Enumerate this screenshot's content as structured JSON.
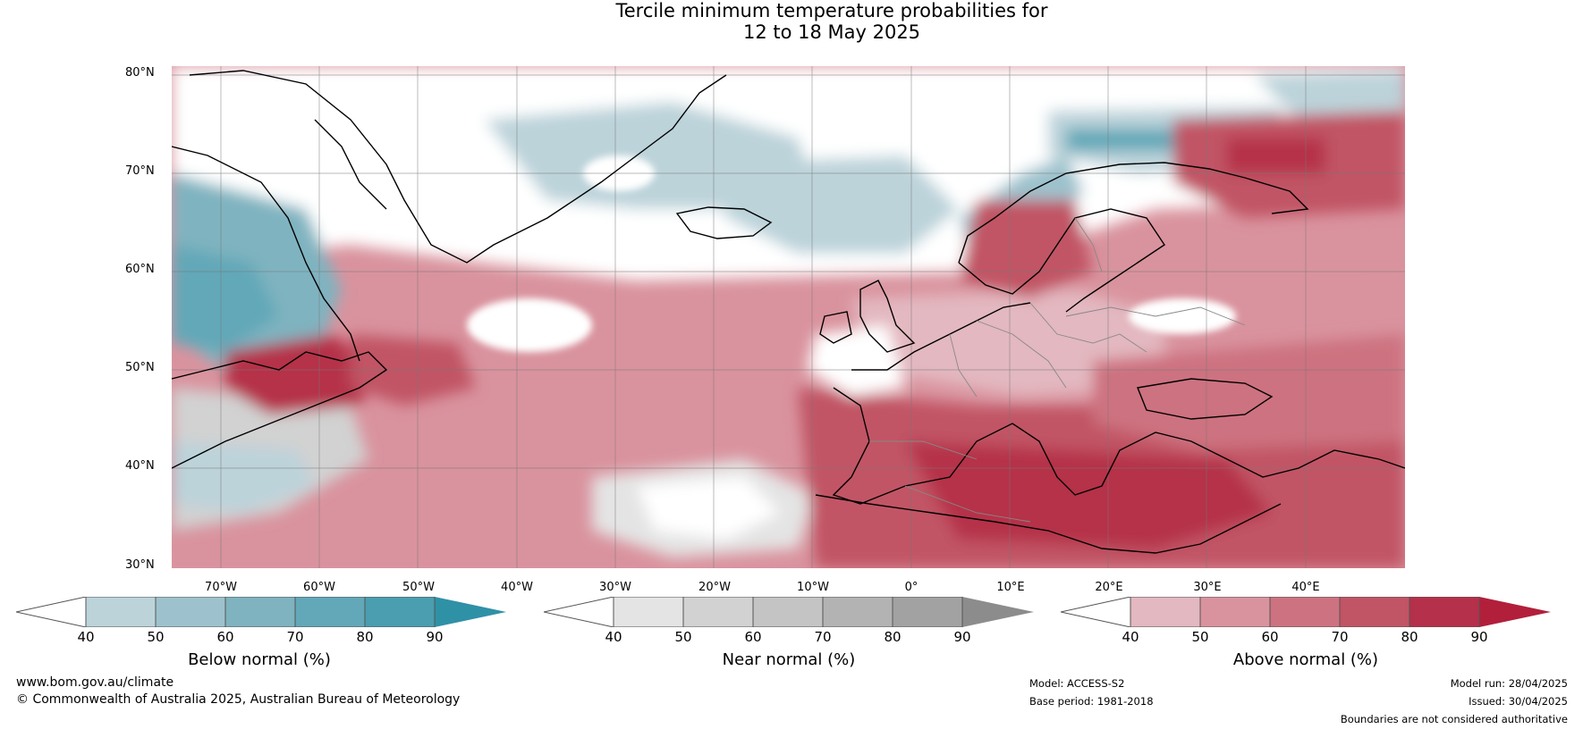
{
  "title": {
    "line1": "Tercile minimum temperature probabilities for",
    "line2": "12 to 18 May 2025"
  },
  "map": {
    "lat_labels": [
      "80°N",
      "70°N",
      "60°N",
      "50°N",
      "40°N",
      "30°N"
    ],
    "lon_labels": [
      "70°W",
      "60°W",
      "50°W",
      "40°W",
      "30°W",
      "20°W",
      "10°W",
      "0°",
      "10°E",
      "20°E",
      "30°E",
      "40°E"
    ],
    "regions": [
      "Greenland",
      "Iceland",
      "Scandinavia",
      "British Isles",
      "Europe",
      "Mediterranean",
      "North Africa",
      "Atlantic Ocean",
      "North America"
    ]
  },
  "colorbars": [
    {
      "label": "Below normal (%)",
      "ticks": [
        "40",
        "50",
        "60",
        "70",
        "80",
        "90"
      ],
      "colors": [
        "#ffffff",
        "#bcd3da",
        "#9dc2cd",
        "#7fb3c0",
        "#62a8b8",
        "#4a9eb0",
        "#2f91a6"
      ]
    },
    {
      "label": "Near normal (%)",
      "ticks": [
        "40",
        "50",
        "60",
        "70",
        "80",
        "90"
      ],
      "colors": [
        "#ffffff",
        "#e4e4e4",
        "#d2d2d2",
        "#c4c4c4",
        "#b3b3b3",
        "#a2a2a2",
        "#8c8c8c"
      ]
    },
    {
      "label": "Above normal (%)",
      "ticks": [
        "40",
        "50",
        "60",
        "70",
        "80",
        "90"
      ],
      "colors": [
        "#ffffff",
        "#e3b8c0",
        "#d9939e",
        "#cd7280",
        "#c15465",
        "#b5304a",
        "#b21f3b"
      ]
    }
  ],
  "footer": {
    "url": "www.bom.gov.au/climate",
    "copyright": "© Commonwealth of Australia 2025, Australian Bureau of Meteorology",
    "model": "Model: ACCESS-S2",
    "base_period": "Base period: 1981-2018",
    "model_run": "Model run: 28/04/2025",
    "issued": "Issued: 30/04/2025",
    "disclaimer": "Boundaries are not considered authoritative"
  }
}
